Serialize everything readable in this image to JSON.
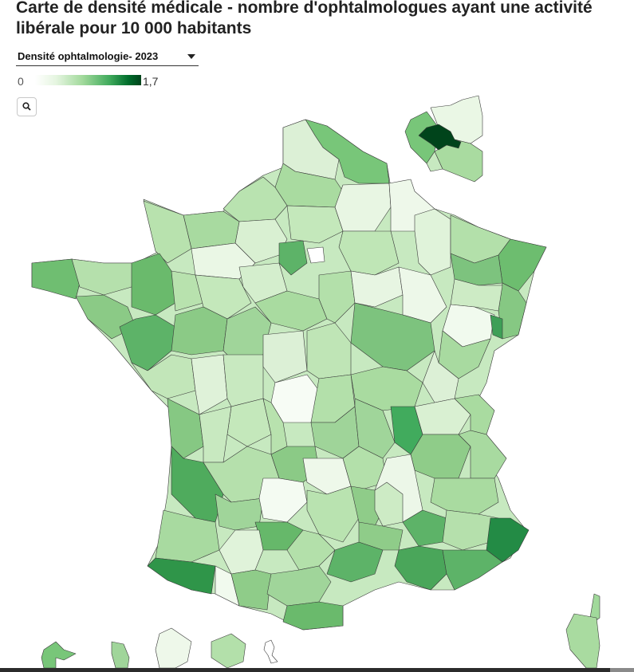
{
  "header": {
    "title": "Carte de densité médicale - nombre d'ophtalmologues ayant une activité libérale pour 10 000 habitants"
  },
  "selector": {
    "label": "Densité ophtalmologie- 2023",
    "icon": "chevron-down-icon"
  },
  "legend": {
    "min_label": "0",
    "max_label": "1,7",
    "min": 0,
    "max": 1.7,
    "colors": [
      "#ffffff",
      "#e5f5e0",
      "#a1d99b",
      "#41ab5d",
      "#006d2c",
      "#00441b"
    ]
  },
  "toolbar": {
    "search_icon": "search-icon"
  },
  "map": {
    "border_color": "#3a3a3a"
  }
}
